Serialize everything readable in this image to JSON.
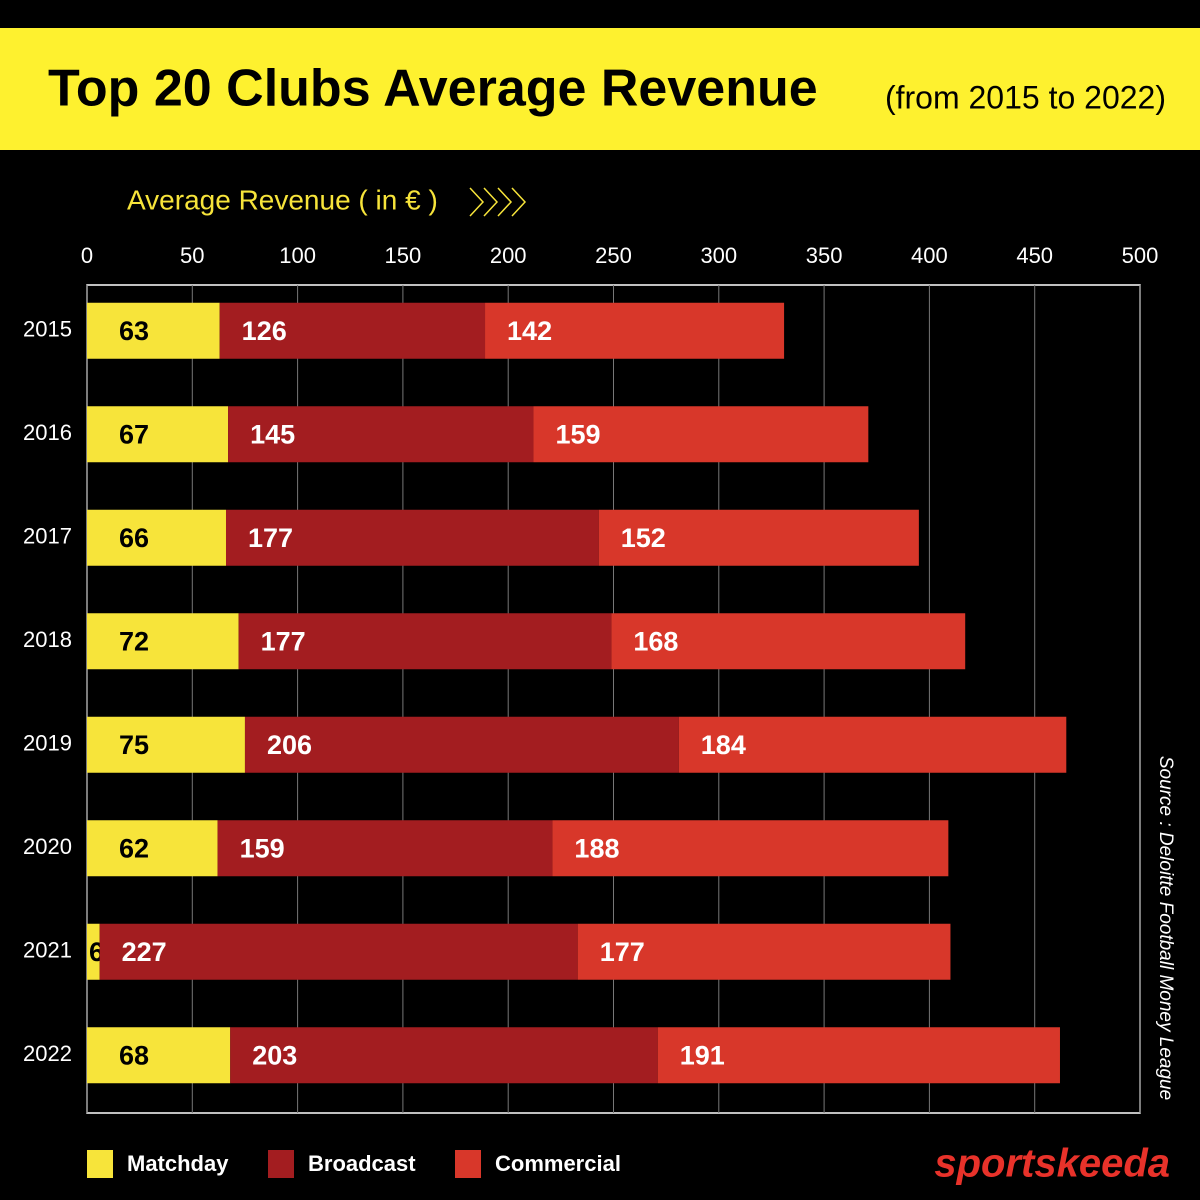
{
  "chart_data": {
    "type": "stacked-bar-horizontal",
    "title": "Top 20 Clubs Average Revenue",
    "subtitle": "(from 2015 to 2022)",
    "x_label": "Average Revenue ( in € )",
    "source": "Source : Deloitte Football Money League",
    "brand": "sportskeeda",
    "categories": [
      "2015",
      "2016",
      "2017",
      "2018",
      "2019",
      "2020",
      "2021",
      "2022"
    ],
    "series": [
      {
        "name": "Matchday",
        "color": "#f7e43a",
        "label_color": "#000000",
        "values": [
          63,
          67,
          66,
          72,
          75,
          62,
          6,
          68
        ]
      },
      {
        "name": "Broadcast",
        "color": "#a31d20",
        "label_color": "#ffffff",
        "values": [
          126,
          145,
          177,
          177,
          206,
          159,
          227,
          203
        ]
      },
      {
        "name": "Commercial",
        "color": "#d8372a",
        "label_color": "#ffffff",
        "values": [
          142,
          159,
          152,
          168,
          184,
          188,
          177,
          191
        ]
      }
    ],
    "xlim": [
      0,
      500
    ],
    "xticks": [
      0,
      50,
      100,
      150,
      200,
      250,
      300,
      350,
      400,
      450,
      500
    ],
    "grid": true
  }
}
